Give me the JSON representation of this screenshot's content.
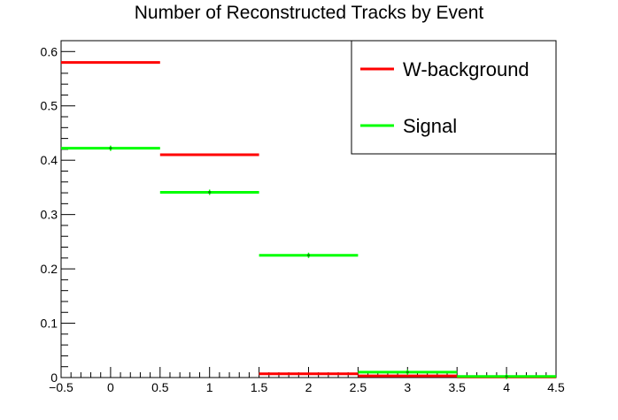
{
  "chart_data": {
    "type": "step",
    "title": "Number of Reconstructed Tracks by Event",
    "xlabel": "",
    "ylabel": "",
    "xlim": [
      -0.5,
      4.5
    ],
    "ylim": [
      0,
      0.62
    ],
    "x_ticks": [
      "−0.5",
      "0",
      "0.5",
      "1",
      "1.5",
      "2",
      "2.5",
      "3",
      "3.5",
      "4",
      "4.5"
    ],
    "x_tick_values": [
      -0.5,
      0,
      0.5,
      1,
      1.5,
      2,
      2.5,
      3,
      3.5,
      4,
      4.5
    ],
    "y_ticks": [
      "0",
      "0.1",
      "0.2",
      "0.3",
      "0.4",
      "0.5",
      "0.6"
    ],
    "y_tick_values": [
      0,
      0.1,
      0.2,
      0.3,
      0.4,
      0.5,
      0.6
    ],
    "bin_edges": [
      -0.5,
      0.5,
      1.5,
      2.5,
      3.5,
      4.5
    ],
    "bin_centers": [
      0,
      1,
      2,
      3,
      4
    ],
    "series": [
      {
        "name": "W-background",
        "color": "#ff0000",
        "values": [
          0.58,
          0.41,
          0.007,
          0.003,
          0.001
        ],
        "markers": false
      },
      {
        "name": "Signal",
        "color": "#00ff00",
        "values": [
          0.422,
          0.341,
          0.225,
          0.01,
          0.002
        ],
        "markers": true
      }
    ],
    "legend": {
      "position": "top-right"
    },
    "grid": false
  }
}
